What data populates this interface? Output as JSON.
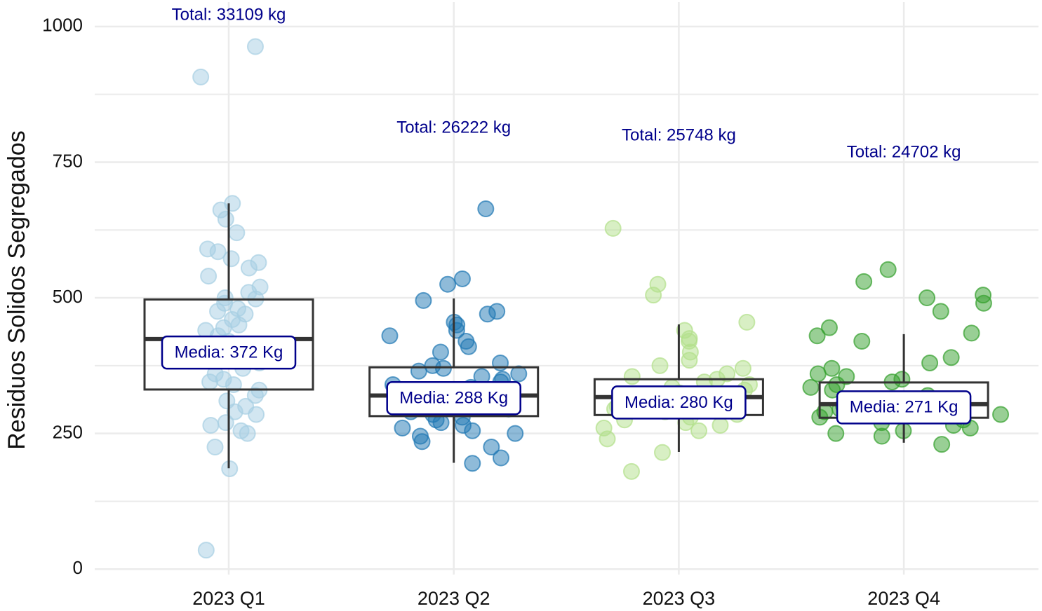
{
  "chart_data": {
    "type": "box",
    "y_label": "Residuos Solidos Segregados",
    "categories": [
      "2023 Q1",
      "2023 Q2",
      "2023 Q3",
      "2023 Q4"
    ],
    "colors": [
      "#a6cee3",
      "#1f78b4",
      "#b2df8a",
      "#33a02c"
    ],
    "ylim": [
      -10,
      1045
    ],
    "yticks": [
      0,
      250,
      500,
      750,
      1000
    ],
    "minor_yticks": [
      125,
      375,
      625,
      875
    ],
    "grid": true,
    "boxes": [
      {
        "whisker_low": 186,
        "q1": 331,
        "median": 424,
        "q3": 497,
        "whisker_high": 674
      },
      {
        "whisker_low": 196,
        "q1": 282,
        "median": 320,
        "q3": 372,
        "whisker_high": 499
      },
      {
        "whisker_low": 216,
        "q1": 284,
        "median": 317,
        "q3": 350,
        "whisker_high": 451
      },
      {
        "whisker_low": 233,
        "q1": 279,
        "median": 304,
        "q3": 344,
        "whisker_high": 433
      }
    ],
    "points": [
      [
        963,
        907,
        674,
        662,
        645,
        620,
        590,
        585,
        572,
        565,
        555,
        540,
        520,
        510,
        500,
        498,
        490,
        480,
        475,
        470,
        460,
        450,
        445,
        440,
        430,
        420,
        410,
        400,
        390,
        380,
        370,
        360,
        350,
        345,
        340,
        330,
        320,
        310,
        300,
        290,
        285,
        270,
        265,
        255,
        250,
        225,
        185,
        35
      ],
      [
        664,
        535,
        525,
        495,
        475,
        470,
        455,
        450,
        440,
        430,
        420,
        410,
        400,
        380,
        375,
        370,
        365,
        360,
        355,
        350,
        345,
        340,
        335,
        330,
        320,
        310,
        300,
        295,
        290,
        285,
        280,
        275,
        270,
        265,
        260,
        255,
        250,
        245,
        235,
        225,
        205,
        195
      ],
      [
        628,
        525,
        505,
        455,
        440,
        425,
        420,
        400,
        385,
        375,
        370,
        360,
        355,
        350,
        345,
        340,
        335,
        330,
        325,
        320,
        310,
        300,
        295,
        290,
        285,
        280,
        275,
        270,
        265,
        260,
        255,
        240,
        215,
        180
      ],
      [
        552,
        530,
        505,
        500,
        490,
        475,
        445,
        435,
        430,
        420,
        390,
        380,
        370,
        360,
        355,
        350,
        345,
        340,
        335,
        330,
        320,
        310,
        300,
        295,
        290,
        285,
        280,
        275,
        270,
        265,
        260,
        255,
        250,
        245,
        230
      ]
    ],
    "means": [
      372,
      288,
      280,
      271
    ],
    "mean_labels": [
      "Media: 372 Kg",
      "Media: 288 Kg",
      "Media: 280 Kg",
      "Media: 271 Kg"
    ],
    "total_labels": [
      "Total: 33109 kg",
      "Total: 26222 kg",
      "Total: 25748 kg",
      "Total: 24702 kg"
    ]
  }
}
